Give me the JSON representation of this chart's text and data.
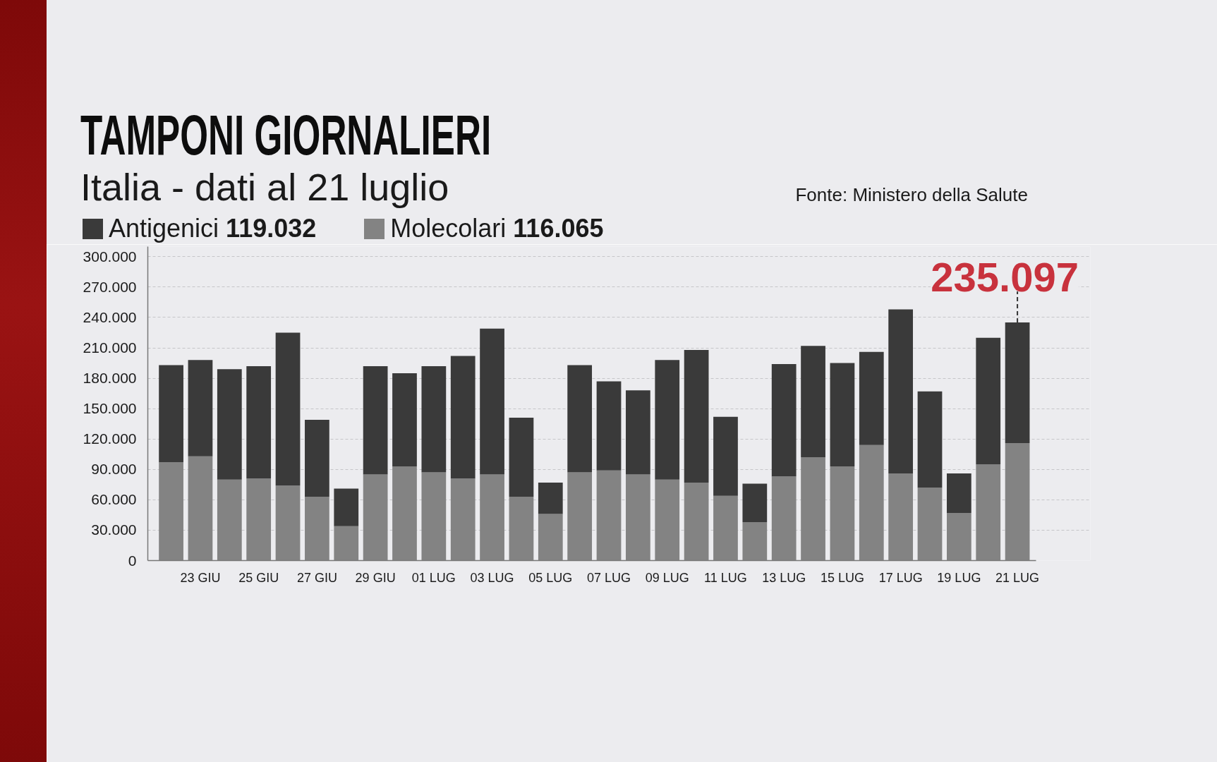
{
  "chart_data": {
    "type": "bar",
    "title": "TAMPONI GIORNALIERI",
    "subtitle": "Italia - dati al 21 luglio",
    "categories": [
      null,
      "23 GIU",
      null,
      "25 GIU",
      null,
      "27 GIU",
      null,
      "29 GIU",
      null,
      "01 LUG",
      null,
      "03 LUG",
      null,
      "05 LUG",
      null,
      "07 LUG",
      null,
      "09 LUG",
      null,
      "11 LUG",
      null,
      "13 LUG",
      null,
      "15 LUG",
      null,
      "17 LUG",
      null,
      "19 LUG",
      null,
      "21 LUG"
    ],
    "stacked": true,
    "series": [
      {
        "name": "Molecolari 116.065",
        "color": "#838383",
        "values": [
          97000,
          103000,
          80000,
          81000,
          74000,
          63000,
          34000,
          85000,
          93000,
          87000,
          81000,
          85000,
          63000,
          46000,
          87000,
          89000,
          85000,
          80000,
          77000,
          64000,
          38000,
          83000,
          102000,
          93000,
          114000,
          86000,
          72000,
          47000,
          95000,
          116065
        ]
      },
      {
        "name": "Antigenici 119.032",
        "color": "#3a3a3a",
        "values": [
          96000,
          95000,
          109000,
          111000,
          151000,
          76000,
          37000,
          107000,
          92000,
          105000,
          121000,
          144000,
          78000,
          31000,
          106000,
          88000,
          83000,
          118000,
          131000,
          78000,
          38000,
          111000,
          110000,
          102000,
          92000,
          162000,
          95000,
          39000,
          125000,
          119032
        ]
      }
    ],
    "ylim": [
      0,
      310000
    ],
    "yticks": [
      0,
      {
        "value": 30000,
        "label": "30.000"
      },
      {
        "value": 60000,
        "label": "60.000"
      },
      {
        "value": 90000,
        "label": "90.000"
      },
      {
        "value": 120000,
        "label": "120.000"
      },
      {
        "value": 150000,
        "label": "150.000"
      },
      {
        "value": 180000,
        "label": "180.000"
      },
      {
        "value": 210000,
        "label": "210.000"
      },
      {
        "value": 240000,
        "label": "240.000"
      },
      {
        "value": 270000,
        "label": "270.000"
      },
      {
        "value": 300000,
        "label": "300.000"
      }
    ],
    "grid": "y",
    "legend": "top left",
    "annotations": [
      "Fonte: Ministero della Salute",
      {
        "text": "235.097",
        "x": "21 LUG",
        "y": 235097
      }
    ]
  }
}
